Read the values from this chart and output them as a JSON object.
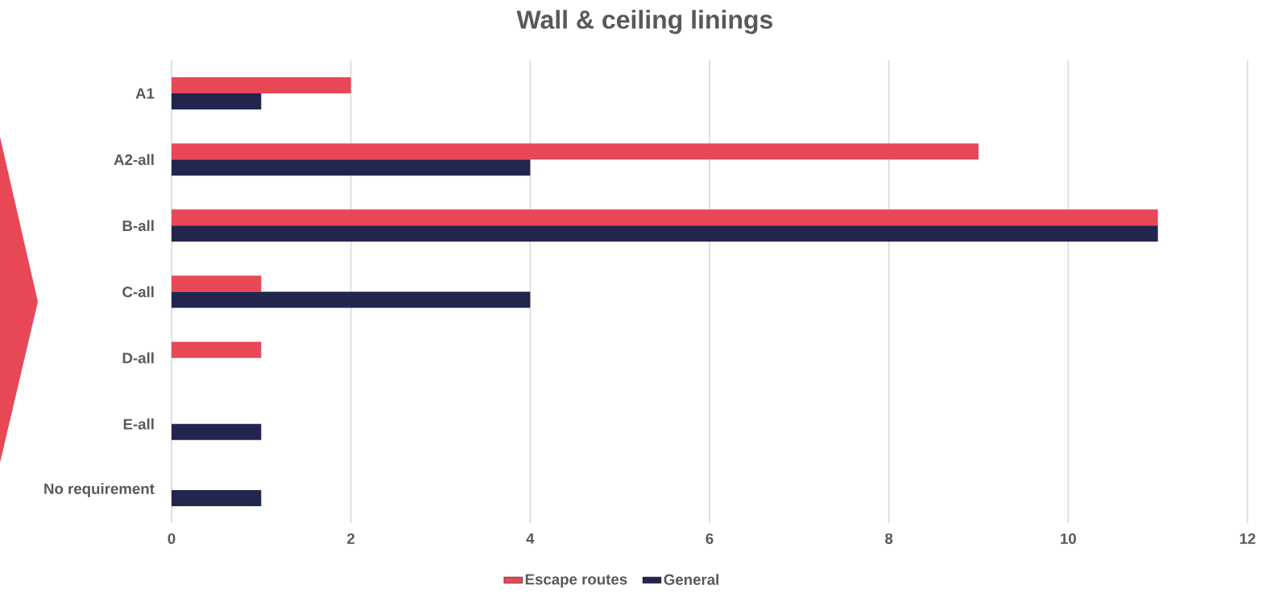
{
  "chart_data": {
    "type": "bar",
    "orientation": "horizontal",
    "title": "Wall & ceiling linings",
    "categories": [
      "A1",
      "A2-all",
      "B-all",
      "C-all",
      "D-all",
      "E-all",
      "No requirement"
    ],
    "series": [
      {
        "name": "Escape routes",
        "color": "#e84756",
        "values": [
          2,
          9,
          11,
          1,
          1,
          null,
          null
        ]
      },
      {
        "name": "General",
        "color": "#22264f",
        "values": [
          1,
          4,
          11,
          4,
          null,
          1,
          1
        ]
      }
    ],
    "xlim": [
      0,
      12
    ],
    "xticks": [
      0,
      2,
      4,
      6,
      8,
      10,
      12
    ],
    "grid": "x",
    "legend": "bottom"
  }
}
